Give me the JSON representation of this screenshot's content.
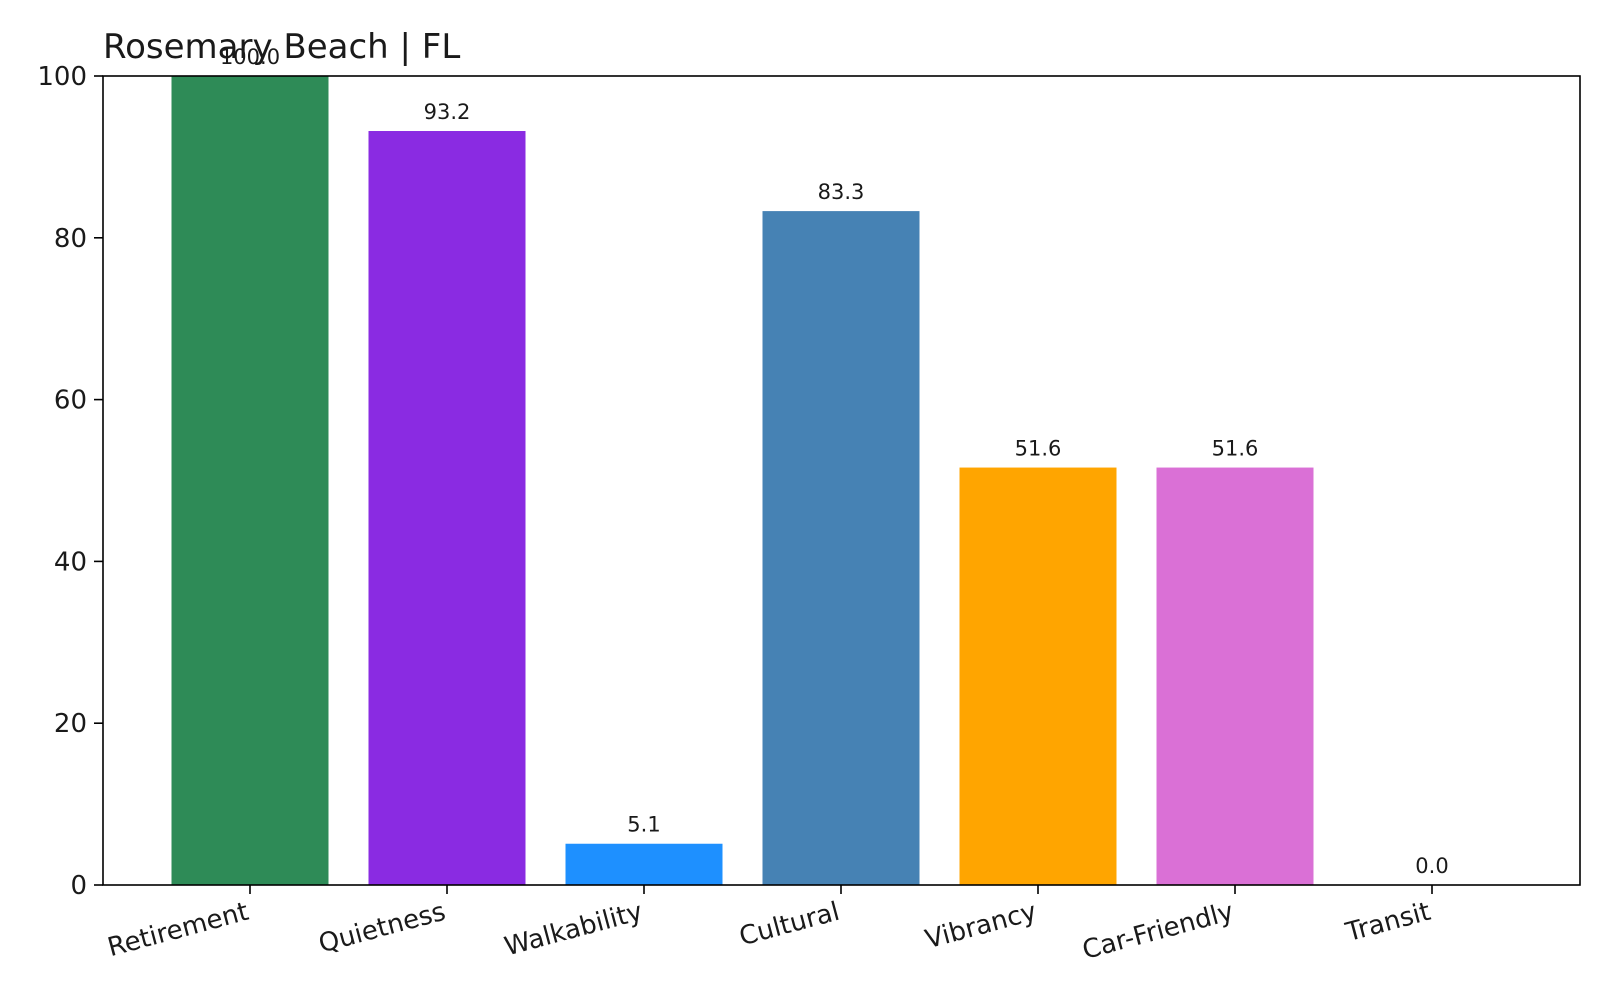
{
  "chart_data": {
    "type": "bar",
    "title": "Rosemary Beach | FL",
    "xlabel": "",
    "ylabel": "",
    "categories": [
      "Retirement",
      "Quietness",
      "Walkability",
      "Cultural",
      "Vibrancy",
      "Car-Friendly",
      "Transit"
    ],
    "values": [
      100.0,
      93.2,
      5.1,
      83.3,
      51.6,
      51.6,
      0.0
    ],
    "value_labels": [
      "100.0",
      "93.2",
      "5.1",
      "83.3",
      "51.6",
      "51.6",
      "0.0"
    ],
    "colors": [
      "#2e8b57",
      "#8a2be2",
      "#1e90ff",
      "#4682b4",
      "#ffa500",
      "#da70d6",
      "#6a5acd"
    ],
    "ylim": [
      0,
      100
    ],
    "yticks": [
      0,
      20,
      40,
      60,
      80,
      100
    ],
    "grid": false,
    "legend": "none"
  }
}
